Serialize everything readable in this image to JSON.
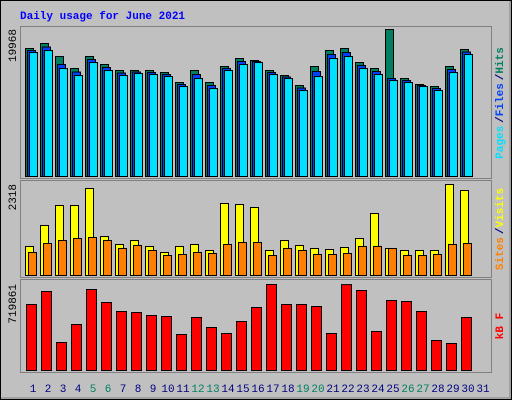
{
  "title": "Daily usage for June 2021",
  "chart_data": [
    {
      "type": "bar",
      "ylim": [
        0,
        19968
      ],
      "yticks": [
        19968
      ],
      "legend_separator": "/",
      "series": [
        {
          "name": "Hits",
          "color": "#008060",
          "values": [
            17386,
            18066,
            16298,
            14669,
            16298,
            15212,
            14397,
            14397,
            14397,
            14125,
            12767,
            14397,
            12767,
            14940,
            16027,
            15755,
            14397,
            13718,
            12360,
            14940,
            17113,
            17386,
            15483,
            14669,
            19968,
            13310,
            12496,
            12224,
            14940,
            17249,
            null
          ]
        },
        {
          "name": "Files",
          "color": "#0040ff",
          "values": [
            17112,
            17588,
            15210,
            14192,
            15890,
            14804,
            14056,
            14192,
            14124,
            13852,
            12494,
            13852,
            12358,
            14668,
            15618,
            15618,
            14124,
            13513,
            12020,
            14260,
            16568,
            16841,
            15074,
            14260,
            13308,
            13037,
            12359,
            11951,
            14531,
            16908,
            null
          ]
        },
        {
          "name": "Pages",
          "color": "#00e0ff",
          "values": [
            16839,
            17111,
            14666,
            13716,
            15481,
            14395,
            13716,
            13987,
            13852,
            13580,
            12222,
            13308,
            11950,
            14395,
            15210,
            15481,
            13852,
            13308,
            11679,
            13580,
            16024,
            16296,
            14666,
            13852,
            13037,
            12765,
            12222,
            11679,
            14123,
            16568,
            null
          ]
        }
      ]
    },
    {
      "type": "bar",
      "ylim": [
        0,
        2318
      ],
      "yticks": [
        2318
      ],
      "legend_separator": "/",
      "series": [
        {
          "name": "Visits",
          "color": "#ffff00",
          "values": [
            739,
            1274,
            1783,
            1783,
            2216,
            993,
            790,
            891,
            739,
            586,
            739,
            790,
            637,
            1834,
            1808,
            1732,
            637,
            891,
            764,
            688,
            662,
            713,
            942,
            1579,
            688,
            637,
            637,
            637,
            2318,
            2165,
            null
          ]
        },
        {
          "name": "Sites",
          "color": "#ff8000",
          "values": [
            586,
            815,
            891,
            942,
            968,
            891,
            688,
            764,
            637,
            509,
            535,
            586,
            560,
            790,
            840,
            840,
            509,
            688,
            637,
            535,
            535,
            560,
            739,
            739,
            688,
            509,
            509,
            535,
            790,
            815,
            null
          ]
        }
      ]
    },
    {
      "type": "bar",
      "ylim": [
        0,
        719861
      ],
      "yticks": [
        719861
      ],
      "categories": [
        "1",
        "2",
        "3",
        "4",
        "5",
        "6",
        "7",
        "8",
        "9",
        "10",
        "11",
        "12",
        "13",
        "14",
        "15",
        "16",
        "17",
        "18",
        "19",
        "20",
        "21",
        "22",
        "23",
        "24",
        "25",
        "26",
        "27",
        "28",
        "29",
        "30",
        "31"
      ],
      "category_colors": [
        "#000080",
        "#000080",
        "#000080",
        "#000080",
        "#008060",
        "#008060",
        "#000080",
        "#000080",
        "#000080",
        "#000080",
        "#000080",
        "#008060",
        "#008060",
        "#000080",
        "#000080",
        "#000080",
        "#000080",
        "#000080",
        "#008060",
        "#008060",
        "#000080",
        "#000080",
        "#000080",
        "#000080",
        "#000080",
        "#008060",
        "#008060",
        "#000080",
        "#000080",
        "#000080",
        "#000080"
      ],
      "series": [
        {
          "name": "kB F",
          "color": "#ff0000",
          "values": [
            552420,
            661230,
            234360,
            385020,
            677970,
            569160,
            493830,
            485460,
            460350,
            451980,
            301320,
            443610,
            359910,
            309690,
            410130,
            527310,
            719861,
            552420,
            552420,
            535680,
            309690,
            719000,
            669600,
            326430,
            585900,
            577530,
            493830,
            251100,
            225990,
            443610,
            null
          ]
        }
      ]
    }
  ]
}
